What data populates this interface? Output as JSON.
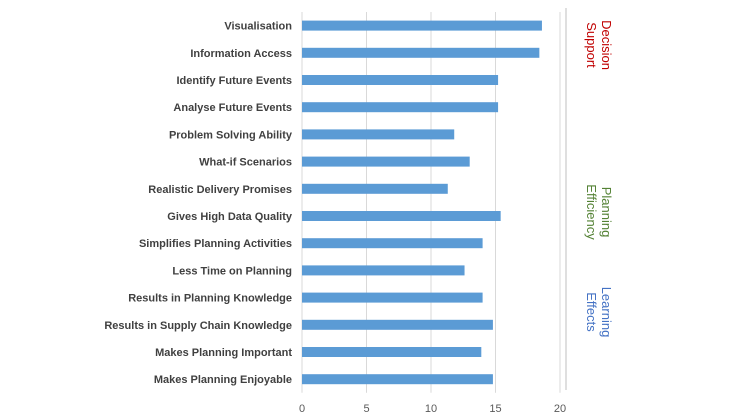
{
  "chart_data": {
    "type": "bar",
    "orientation": "horizontal",
    "categories": [
      "Visualisation",
      "Information Access",
      "Identify Future Events",
      "Analyse Future Events",
      "Problem Solving Ability",
      "What-if Scenarios",
      "Realistic Delivery Promises",
      "Gives High Data Quality",
      "Simplifies Planning Activities",
      "Less Time on Planning",
      "Results in Planning Knowledge",
      "Results in Supply Chain Knowledge",
      "Makes Planning Important",
      "Makes Planning Enjoyable"
    ],
    "values": [
      18.6,
      18.4,
      15.2,
      15.2,
      11.8,
      13.0,
      11.3,
      15.4,
      14.0,
      12.6,
      14.0,
      14.8,
      13.9,
      14.8
    ],
    "xlim": [
      0,
      20
    ],
    "xticks": [
      0,
      5,
      10,
      15,
      20
    ],
    "grid": true,
    "title": "",
    "xlabel": "",
    "ylabel": "",
    "bar_color": "#5b9bd5",
    "groups": [
      {
        "label_lines": [
          "Decision",
          "Support"
        ],
        "color": "#c00000"
      },
      {
        "label_lines": [
          "Planning",
          "Efficiency"
        ],
        "color": "#548235"
      },
      {
        "label_lines": [
          "Learning",
          "Effects"
        ],
        "color": "#4472c4"
      }
    ]
  }
}
